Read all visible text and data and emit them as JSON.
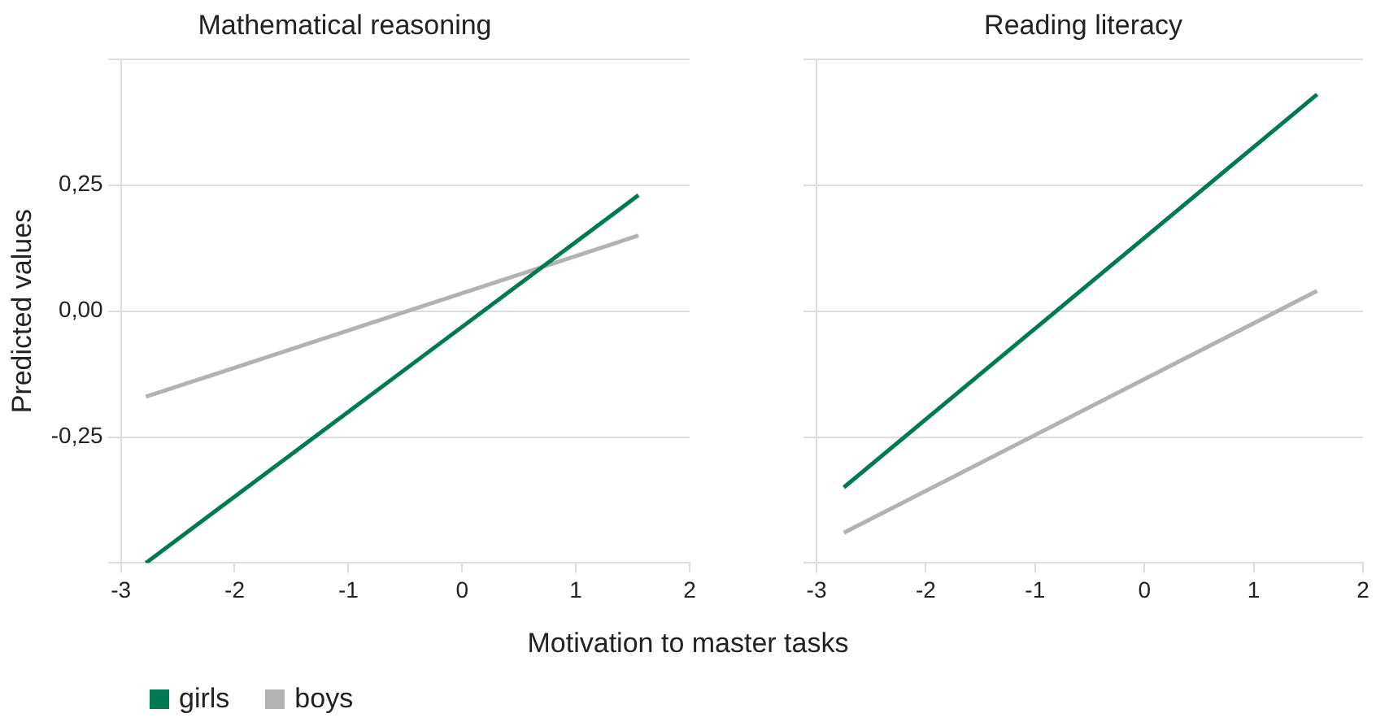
{
  "chart_data": [
    {
      "type": "line",
      "title": "Mathematical reasoning",
      "ylabel": "Predicted values",
      "xlabel": "Motivation to master tasks",
      "xlim": [
        -3,
        2
      ],
      "xticks": [
        -3,
        -2,
        -1,
        0,
        1,
        2
      ],
      "ylim": [
        -0.5,
        0.5
      ],
      "yticks": [
        {
          "value": -0.5,
          "label": null
        },
        {
          "value": -0.25,
          "label": "-0,25"
        },
        {
          "value": 0,
          "label": "0,00"
        },
        {
          "value": 0.25,
          "label": "0,25"
        },
        {
          "value": 0.5,
          "label": null
        }
      ],
      "grid": "y",
      "legend": "bottom left",
      "marker": "none",
      "series": [
        {
          "name": "girls",
          "color": "#007a53",
          "x": [
            -2.78,
            1.55
          ],
          "values": [
            -0.5,
            0.23
          ]
        },
        {
          "name": "boys",
          "color": "#b2b2b2",
          "x": [
            -2.78,
            1.55
          ],
          "values": [
            -0.17,
            0.15
          ]
        }
      ]
    },
    {
      "type": "line",
      "title": "Reading literacy",
      "xlim": [
        -3,
        2
      ],
      "xticks": [
        -3,
        -2,
        -1,
        0,
        1,
        2
      ],
      "ylim": [
        -0.5,
        0.5
      ],
      "yticks": [
        {
          "value": -0.5,
          "label": null
        },
        {
          "value": -0.25,
          "label": null
        },
        {
          "value": 0,
          "label": null
        },
        {
          "value": 0.25,
          "label": null
        },
        {
          "value": 0.5,
          "label": null
        }
      ],
      "grid": "y",
      "tick_labels": "x",
      "marker": "none",
      "series": [
        {
          "color": "#007a53",
          "x": [
            -2.75,
            1.58
          ],
          "values": [
            -0.35,
            0.43
          ]
        },
        {
          "color": "#b2b2b2",
          "x": [
            -2.75,
            1.58
          ],
          "values": [
            -0.44,
            0.04
          ]
        }
      ]
    }
  ]
}
